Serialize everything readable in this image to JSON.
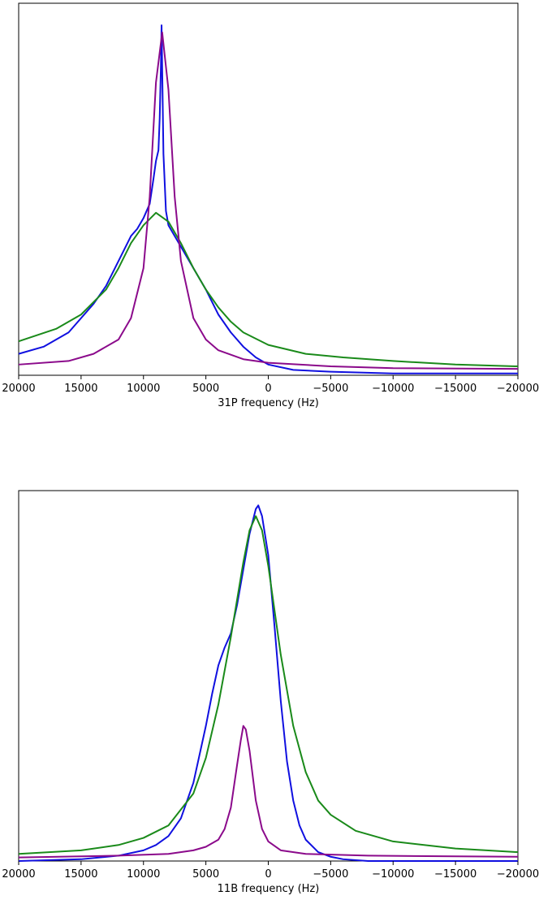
{
  "chart_data": [
    {
      "type": "line",
      "title": "",
      "xlabel": "31P frequency (Hz)",
      "ylabel": "",
      "xlim": [
        20000,
        -20000
      ],
      "ylim": [
        0,
        1
      ],
      "x_inverted": true,
      "y_ticks_shown": false,
      "grid": false,
      "legend": "none",
      "xticks": [
        20000,
        15000,
        10000,
        5000,
        0,
        -5000,
        -10000,
        -15000,
        -20000
      ],
      "xtick_labels": [
        "20000",
        "15000",
        "10000",
        "5000",
        "0",
        "−5000",
        "−10000",
        "−15000",
        "−20000"
      ],
      "series": [
        {
          "color": "#1010e0",
          "points": [
            [
              20000,
              0.06
            ],
            [
              18000,
              0.08
            ],
            [
              16000,
              0.12
            ],
            [
              14000,
              0.2
            ],
            [
              13000,
              0.25
            ],
            [
              12000,
              0.32
            ],
            [
              11000,
              0.39
            ],
            [
              10500,
              0.41
            ],
            [
              10000,
              0.44
            ],
            [
              9500,
              0.48
            ],
            [
              9200,
              0.55
            ],
            [
              9000,
              0.6
            ],
            [
              8800,
              0.63
            ],
            [
              8700,
              0.72
            ],
            [
              8600,
              0.87
            ],
            [
              8550,
              0.98
            ],
            [
              8500,
              0.86
            ],
            [
              8400,
              0.62
            ],
            [
              8200,
              0.46
            ],
            [
              8000,
              0.42
            ],
            [
              7000,
              0.36
            ],
            [
              6000,
              0.3
            ],
            [
              5000,
              0.24
            ],
            [
              4000,
              0.17
            ],
            [
              3000,
              0.12
            ],
            [
              2000,
              0.08
            ],
            [
              1000,
              0.05
            ],
            [
              0,
              0.03
            ],
            [
              -2000,
              0.015
            ],
            [
              -5000,
              0.01
            ],
            [
              -10000,
              0.005
            ],
            [
              -15000,
              0.005
            ],
            [
              -20000,
              0.005
            ]
          ]
        },
        {
          "color": "#1a8a1a",
          "points": [
            [
              20000,
              0.095
            ],
            [
              17000,
              0.13
            ],
            [
              15000,
              0.17
            ],
            [
              13000,
              0.24
            ],
            [
              12000,
              0.3
            ],
            [
              11000,
              0.37
            ],
            [
              10000,
              0.42
            ],
            [
              9000,
              0.455
            ],
            [
              8000,
              0.43
            ],
            [
              7000,
              0.37
            ],
            [
              6000,
              0.3
            ],
            [
              5000,
              0.24
            ],
            [
              4000,
              0.19
            ],
            [
              3000,
              0.15
            ],
            [
              2000,
              0.12
            ],
            [
              0,
              0.085
            ],
            [
              -3000,
              0.06
            ],
            [
              -6000,
              0.05
            ],
            [
              -10000,
              0.04
            ],
            [
              -15000,
              0.03
            ],
            [
              -20000,
              0.025
            ]
          ]
        },
        {
          "color": "#8b0a8b",
          "points": [
            [
              20000,
              0.03
            ],
            [
              16000,
              0.04
            ],
            [
              14000,
              0.06
            ],
            [
              12000,
              0.1
            ],
            [
              11000,
              0.16
            ],
            [
              10000,
              0.3
            ],
            [
              9500,
              0.5
            ],
            [
              9000,
              0.82
            ],
            [
              8500,
              0.96
            ],
            [
              8000,
              0.8
            ],
            [
              7500,
              0.5
            ],
            [
              7000,
              0.32
            ],
            [
              6000,
              0.16
            ],
            [
              5000,
              0.1
            ],
            [
              4000,
              0.07
            ],
            [
              2000,
              0.045
            ],
            [
              0,
              0.035
            ],
            [
              -5000,
              0.025
            ],
            [
              -10000,
              0.02
            ],
            [
              -20000,
              0.018
            ]
          ]
        }
      ]
    },
    {
      "type": "line",
      "title": "",
      "xlabel": "11B frequency (Hz)",
      "ylabel": "",
      "xlim": [
        20000,
        -20000
      ],
      "ylim": [
        0,
        1
      ],
      "x_inverted": true,
      "y_ticks_shown": false,
      "grid": false,
      "legend": "none",
      "xticks": [
        20000,
        15000,
        10000,
        5000,
        0,
        -5000,
        -10000,
        -15000,
        -20000
      ],
      "xtick_labels": [
        "20000",
        "15000",
        "10000",
        "5000",
        "0",
        "−5000",
        "−10000",
        "−15000",
        "−20000"
      ],
      "series": [
        {
          "color": "#1010e0",
          "points": [
            [
              20000,
              0.0
            ],
            [
              15000,
              0.005
            ],
            [
              12000,
              0.015
            ],
            [
              10000,
              0.03
            ],
            [
              9000,
              0.045
            ],
            [
              8000,
              0.07
            ],
            [
              7000,
              0.12
            ],
            [
              6000,
              0.22
            ],
            [
              5000,
              0.38
            ],
            [
              4500,
              0.47
            ],
            [
              4000,
              0.55
            ],
            [
              3500,
              0.6
            ],
            [
              3000,
              0.64
            ],
            [
              2500,
              0.72
            ],
            [
              2000,
              0.82
            ],
            [
              1500,
              0.92
            ],
            [
              1000,
              0.99
            ],
            [
              800,
              1.0
            ],
            [
              500,
              0.97
            ],
            [
              0,
              0.86
            ],
            [
              -500,
              0.66
            ],
            [
              -1000,
              0.45
            ],
            [
              -1500,
              0.28
            ],
            [
              -2000,
              0.17
            ],
            [
              -2500,
              0.1
            ],
            [
              -3000,
              0.06
            ],
            [
              -4000,
              0.025
            ],
            [
              -5000,
              0.012
            ],
            [
              -6000,
              0.005
            ],
            [
              -8000,
              0.0
            ],
            [
              -20000,
              0.0
            ]
          ]
        },
        {
          "color": "#1a8a1a",
          "points": [
            [
              20000,
              0.02
            ],
            [
              15000,
              0.03
            ],
            [
              12000,
              0.045
            ],
            [
              10000,
              0.065
            ],
            [
              8000,
              0.1
            ],
            [
              6000,
              0.19
            ],
            [
              5000,
              0.29
            ],
            [
              4000,
              0.44
            ],
            [
              3000,
              0.63
            ],
            [
              2000,
              0.84
            ],
            [
              1500,
              0.93
            ],
            [
              1000,
              0.97
            ],
            [
              500,
              0.93
            ],
            [
              0,
              0.83
            ],
            [
              -1000,
              0.58
            ],
            [
              -2000,
              0.38
            ],
            [
              -3000,
              0.25
            ],
            [
              -4000,
              0.17
            ],
            [
              -5000,
              0.13
            ],
            [
              -7000,
              0.085
            ],
            [
              -10000,
              0.055
            ],
            [
              -15000,
              0.035
            ],
            [
              -20000,
              0.025
            ]
          ]
        },
        {
          "color": "#8b0a8b",
          "points": [
            [
              20000,
              0.01
            ],
            [
              12000,
              0.015
            ],
            [
              8000,
              0.02
            ],
            [
              6000,
              0.03
            ],
            [
              5000,
              0.04
            ],
            [
              4000,
              0.06
            ],
            [
              3500,
              0.09
            ],
            [
              3000,
              0.15
            ],
            [
              2500,
              0.27
            ],
            [
              2200,
              0.34
            ],
            [
              2000,
              0.38
            ],
            [
              1800,
              0.37
            ],
            [
              1500,
              0.31
            ],
            [
              1000,
              0.17
            ],
            [
              500,
              0.09
            ],
            [
              0,
              0.055
            ],
            [
              -1000,
              0.03
            ],
            [
              -3000,
              0.02
            ],
            [
              -8000,
              0.015
            ],
            [
              -20000,
              0.012
            ]
          ]
        }
      ]
    }
  ]
}
